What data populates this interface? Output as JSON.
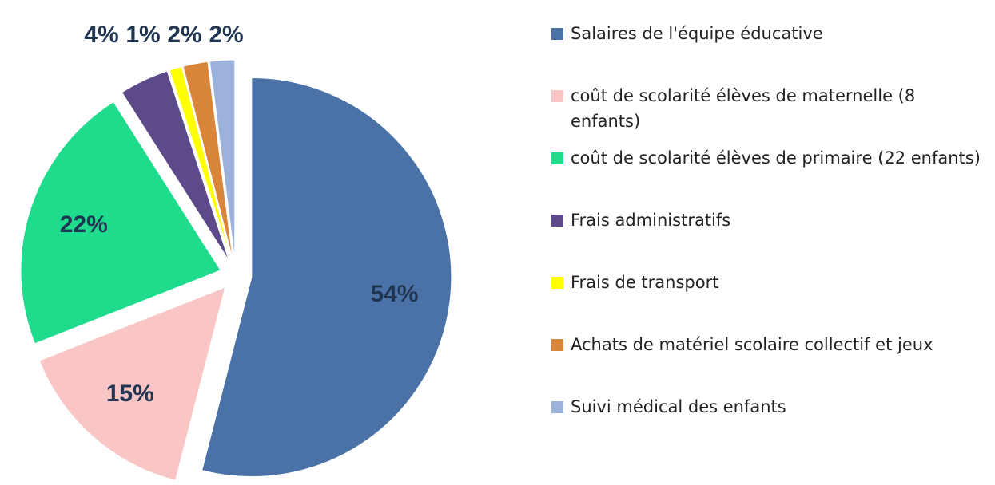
{
  "chart_data": {
    "type": "pie",
    "categories": [
      "Salaires de l'équipe éducative",
      "coût de scolarité élèves de maternelle (8 enfants)",
      "coût de scolarité élèves de primaire (22 enfants)",
      "Frais administratifs",
      "Frais de transport",
      "Achats de matériel scolaire collectif et jeux",
      "Suivi médical des enfants"
    ],
    "values": [
      54,
      15,
      22,
      4,
      1,
      2,
      2
    ],
    "value_labels": [
      "54%",
      "15%",
      "22%",
      "4%",
      "1%",
      "2%",
      "2%"
    ],
    "colors": [
      "#4a72a6",
      "#f9c5c5",
      "#1fdc8c",
      "#5d4a8a",
      "#ffff00",
      "#d9863a",
      "#9db2da"
    ],
    "legend": "right"
  }
}
